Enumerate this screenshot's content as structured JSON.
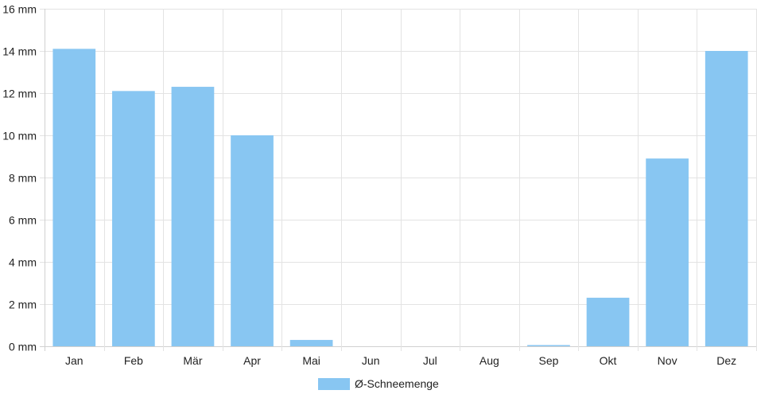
{
  "chart_data": {
    "type": "bar",
    "title": "",
    "xlabel": "",
    "ylabel": "",
    "categories": [
      "Jan",
      "Feb",
      "Mär",
      "Apr",
      "Mai",
      "Jun",
      "Jul",
      "Aug",
      "Sep",
      "Okt",
      "Nov",
      "Dez"
    ],
    "series": [
      {
        "name": "Ø-Schneemenge",
        "values": [
          14.1,
          12.1,
          12.3,
          10.0,
          0.3,
          0,
          0,
          0,
          0.05,
          2.3,
          8.9,
          14.0
        ],
        "color": "#88c6f2"
      }
    ],
    "ylim": [
      0,
      16
    ],
    "y_ticks": [
      0,
      2,
      4,
      6,
      8,
      10,
      12,
      14,
      16
    ],
    "y_tick_labels": [
      "0 mm",
      "2 mm",
      "4 mm",
      "6 mm",
      "8 mm",
      "10 mm",
      "12 mm",
      "14 mm",
      "16 mm"
    ],
    "grid": true,
    "legend_position": "bottom"
  }
}
